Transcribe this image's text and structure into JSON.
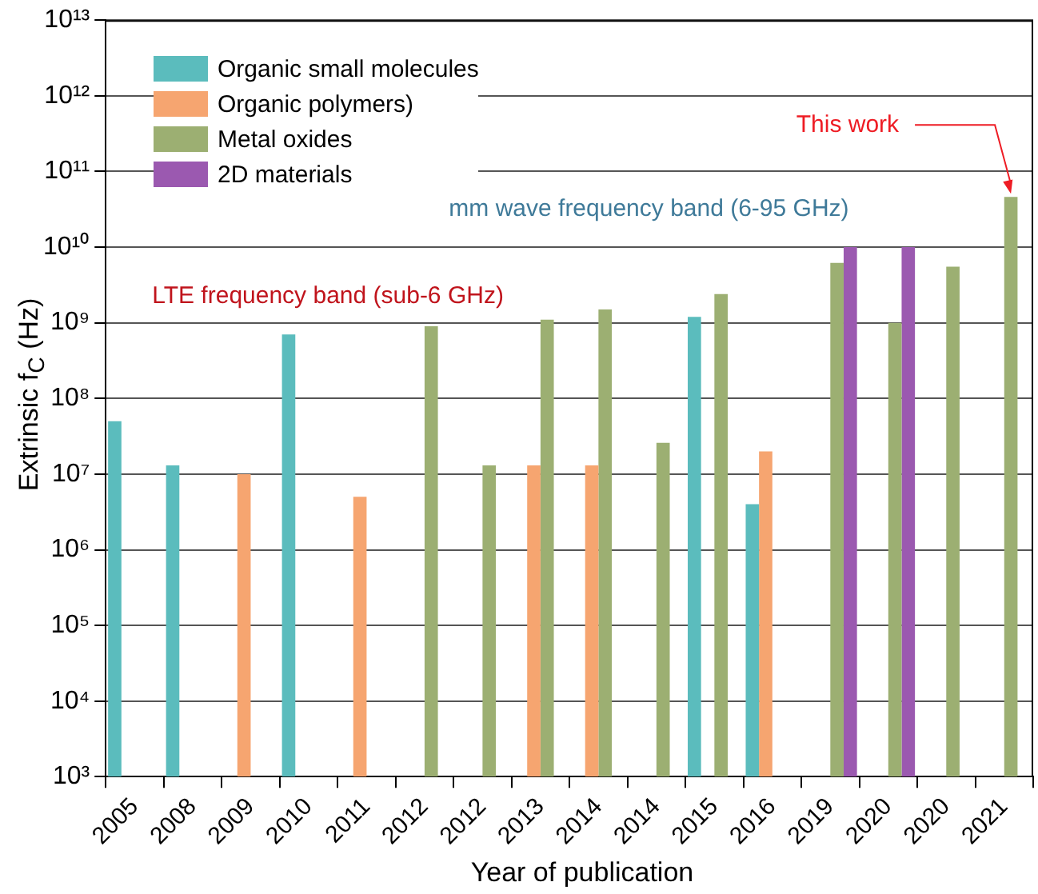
{
  "chart_data": {
    "type": "bar",
    "xlabel": "Year of publication",
    "ylabel": "Extrinsic f$_{C}$ (Hz)",
    "categories": [
      "2005",
      "2008",
      "2009",
      "2010",
      "2011",
      "2012",
      "2012",
      "2013",
      "2014",
      "2014",
      "2015",
      "2016",
      "2019",
      "2020",
      "2020",
      "2021"
    ],
    "series": [
      {
        "name": "Organic small molecules",
        "color": "#5bbcbd",
        "values": [
          50000000.0,
          13000000.0,
          null,
          700000000.0,
          null,
          null,
          null,
          null,
          null,
          null,
          1200000000.0,
          4000000.0,
          null,
          null,
          null,
          null
        ]
      },
      {
        "name": "Organic polymers)",
        "color": "#f6a570",
        "values": [
          null,
          null,
          10000000.0,
          null,
          5000000.0,
          null,
          null,
          13000000.0,
          13000000.0,
          null,
          null,
          20000000.0,
          null,
          null,
          null,
          null
        ]
      },
      {
        "name": "Metal oxides",
        "color": "#9caf72",
        "values": [
          null,
          null,
          null,
          null,
          null,
          900000000.0,
          13000000.0,
          1100000000.0,
          1500000000.0,
          26000000.0,
          2400000000.0,
          null,
          6200000000.0,
          1000000000.0,
          5500000000.0,
          46000000000.0
        ]
      },
      {
        "name": "2D materials",
        "color": "#9b59b0",
        "values": [
          null,
          null,
          null,
          null,
          null,
          null,
          null,
          null,
          null,
          null,
          null,
          null,
          10000000000.0,
          10000000000.0,
          null,
          null
        ]
      }
    ],
    "log": "y",
    "ylim": [
      1000.0,
      10000000000000.0
    ],
    "yticks": [
      {
        "value": 1000.0,
        "label": "10³"
      },
      {
        "value": 10000.0,
        "label": "10⁴"
      },
      {
        "value": 100000.0,
        "label": "10⁵"
      },
      {
        "value": 1000000.0,
        "label": "10⁶"
      },
      {
        "value": 10000000.0,
        "label": "10⁷"
      },
      {
        "value": 100000000.0,
        "label": "10⁸"
      },
      {
        "value": 1000000000.0,
        "label": "10⁹"
      },
      {
        "value": 10000000000.0,
        "label": "10¹⁰"
      },
      {
        "value": 100000000000.0,
        "label": "10¹¹"
      },
      {
        "value": 1000000000000.0,
        "label": "10¹²"
      },
      {
        "value": 10000000000000.0,
        "label": "10¹³"
      }
    ],
    "grid": "y",
    "legend": "top left",
    "annotations": [
      {
        "text": "This work",
        "x": "2021",
        "y": 46000000000.0
      },
      "mm wave frequency band (6-95 GHz)",
      "LTE frequency band (sub-6 GHz)"
    ]
  }
}
